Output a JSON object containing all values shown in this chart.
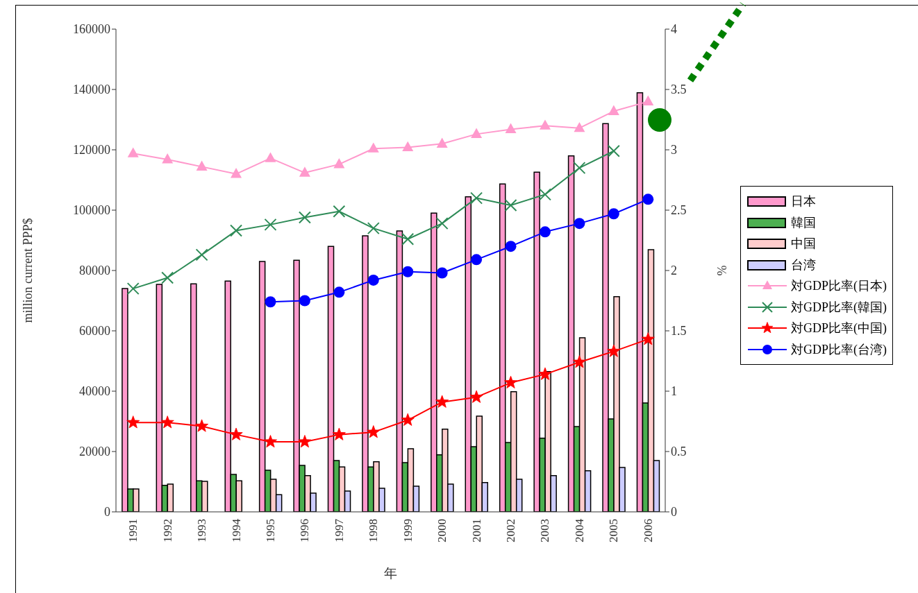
{
  "chart_data": {
    "type": "bar",
    "xlabel": "年",
    "ylabel": "million current PPP$",
    "y2label": "%",
    "categories": [
      "1991",
      "1992",
      "1993",
      "1994",
      "1995",
      "1996",
      "1997",
      "1998",
      "1999",
      "2000",
      "2001",
      "2002",
      "2003",
      "2004",
      "2005",
      "2006"
    ],
    "series": [
      {
        "name": "日本",
        "color": "#ff99cc",
        "values": [
          74000,
          75400,
          75600,
          76500,
          83000,
          83400,
          88000,
          91500,
          93100,
          99000,
          104400,
          108700,
          112600,
          118000,
          128700,
          138900
        ]
      },
      {
        "name": "韓国",
        "color": "#4caf50",
        "values": [
          7600,
          8800,
          10300,
          12400,
          13800,
          15400,
          17000,
          14900,
          16300,
          18900,
          21600,
          23000,
          24400,
          28300,
          30800,
          36100
        ]
      },
      {
        "name": "中国",
        "color": "#ffcccc",
        "values": [
          7600,
          9200,
          10100,
          10300,
          10800,
          12000,
          14900,
          16600,
          20900,
          27400,
          31700,
          39800,
          46500,
          57700,
          71300,
          86900
        ]
      },
      {
        "name": "台湾",
        "color": "#ccccff",
        "values": [
          null,
          null,
          null,
          null,
          5700,
          6200,
          6900,
          7800,
          8500,
          9200,
          9700,
          10800,
          12000,
          13600,
          14700,
          17000
        ]
      },
      {
        "name": "対GDP比率(日本)",
        "type": "line",
        "axis": "y2",
        "marker": "triangle",
        "color": "#ff99cc",
        "values": [
          2.97,
          2.92,
          2.86,
          2.8,
          2.93,
          2.81,
          2.88,
          3.01,
          3.02,
          3.05,
          3.13,
          3.17,
          3.2,
          3.18,
          3.32,
          3.4
        ]
      },
      {
        "name": "対GDP比率(韓国)",
        "type": "line",
        "axis": "y2",
        "marker": "cross",
        "color": "#2e8b57",
        "values": [
          1.85,
          1.94,
          2.13,
          2.33,
          2.38,
          2.44,
          2.49,
          2.35,
          2.26,
          2.39,
          2.6,
          2.54,
          2.63,
          2.85,
          2.99,
          null
        ]
      },
      {
        "name": "対GDP比率(中国)",
        "type": "line",
        "axis": "y2",
        "marker": "star",
        "color": "#ff0000",
        "values": [
          0.74,
          0.74,
          0.71,
          0.64,
          0.58,
          0.58,
          0.64,
          0.66,
          0.76,
          0.91,
          0.95,
          1.07,
          1.14,
          1.24,
          1.33,
          1.43
        ]
      },
      {
        "name": "対GDP比率(台湾)",
        "type": "line",
        "axis": "y2",
        "marker": "circle",
        "color": "#0000ff",
        "values": [
          null,
          null,
          null,
          null,
          1.74,
          1.75,
          1.82,
          1.92,
          1.99,
          1.98,
          2.09,
          2.2,
          2.32,
          2.39,
          2.47,
          2.59
        ]
      }
    ],
    "ylim": [
      0,
      160000
    ],
    "yticks": [
      0,
      20000,
      40000,
      60000,
      80000,
      100000,
      120000,
      140000,
      160000
    ],
    "y2lim": [
      0,
      4
    ],
    "y2ticks": [
      0,
      0.5,
      1,
      1.5,
      2,
      2.5,
      3,
      3.5,
      4
    ],
    "grid": false,
    "legend": "right"
  }
}
